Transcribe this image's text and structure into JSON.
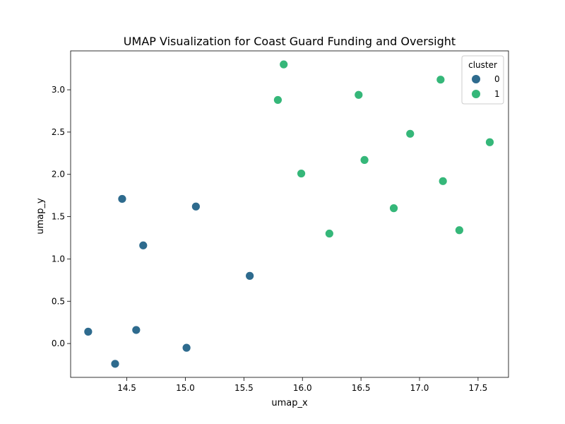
{
  "chart_data": {
    "type": "scatter",
    "title": "UMAP Visualization for Coast Guard Funding and Oversight",
    "xlabel": "umap_x",
    "ylabel": "umap_y",
    "xlim": [
      14.02,
      17.76
    ],
    "ylim": [
      -0.4,
      3.46
    ],
    "xticks": [
      14.5,
      15.0,
      15.5,
      16.0,
      16.5,
      17.0,
      17.5
    ],
    "xtick_labels": [
      "14.5",
      "15.0",
      "15.5",
      "16.0",
      "16.5",
      "17.0",
      "17.5"
    ],
    "yticks": [
      0.0,
      0.5,
      1.0,
      1.5,
      2.0,
      2.5,
      3.0
    ],
    "ytick_labels": [
      "0.0",
      "0.5",
      "1.0",
      "1.5",
      "2.0",
      "2.5",
      "3.0"
    ],
    "grid": false,
    "legend": {
      "title": "cluster",
      "placement": "top-right",
      "entries": [
        {
          "label": "0",
          "color": "#2e6b8e"
        },
        {
          "label": "1",
          "color": "#35b779"
        }
      ]
    },
    "series": [
      {
        "name": "0",
        "color": "#2e6b8e",
        "points": [
          {
            "x": 14.46,
            "y": 1.71
          },
          {
            "x": 15.09,
            "y": 1.62
          },
          {
            "x": 14.64,
            "y": 1.16
          },
          {
            "x": 15.55,
            "y": 0.8
          },
          {
            "x": 14.17,
            "y": 0.14
          },
          {
            "x": 14.58,
            "y": 0.16
          },
          {
            "x": 15.01,
            "y": -0.05
          },
          {
            "x": 14.4,
            "y": -0.24
          }
        ]
      },
      {
        "name": "1",
        "color": "#35b779",
        "points": [
          {
            "x": 15.84,
            "y": 3.3
          },
          {
            "x": 15.79,
            "y": 2.88
          },
          {
            "x": 16.48,
            "y": 2.94
          },
          {
            "x": 17.18,
            "y": 3.12
          },
          {
            "x": 16.92,
            "y": 2.48
          },
          {
            "x": 17.6,
            "y": 2.38
          },
          {
            "x": 16.53,
            "y": 2.17
          },
          {
            "x": 15.99,
            "y": 2.01
          },
          {
            "x": 17.2,
            "y": 1.92
          },
          {
            "x": 16.78,
            "y": 1.6
          },
          {
            "x": 16.23,
            "y": 1.3
          },
          {
            "x": 17.34,
            "y": 1.34
          }
        ]
      }
    ]
  }
}
